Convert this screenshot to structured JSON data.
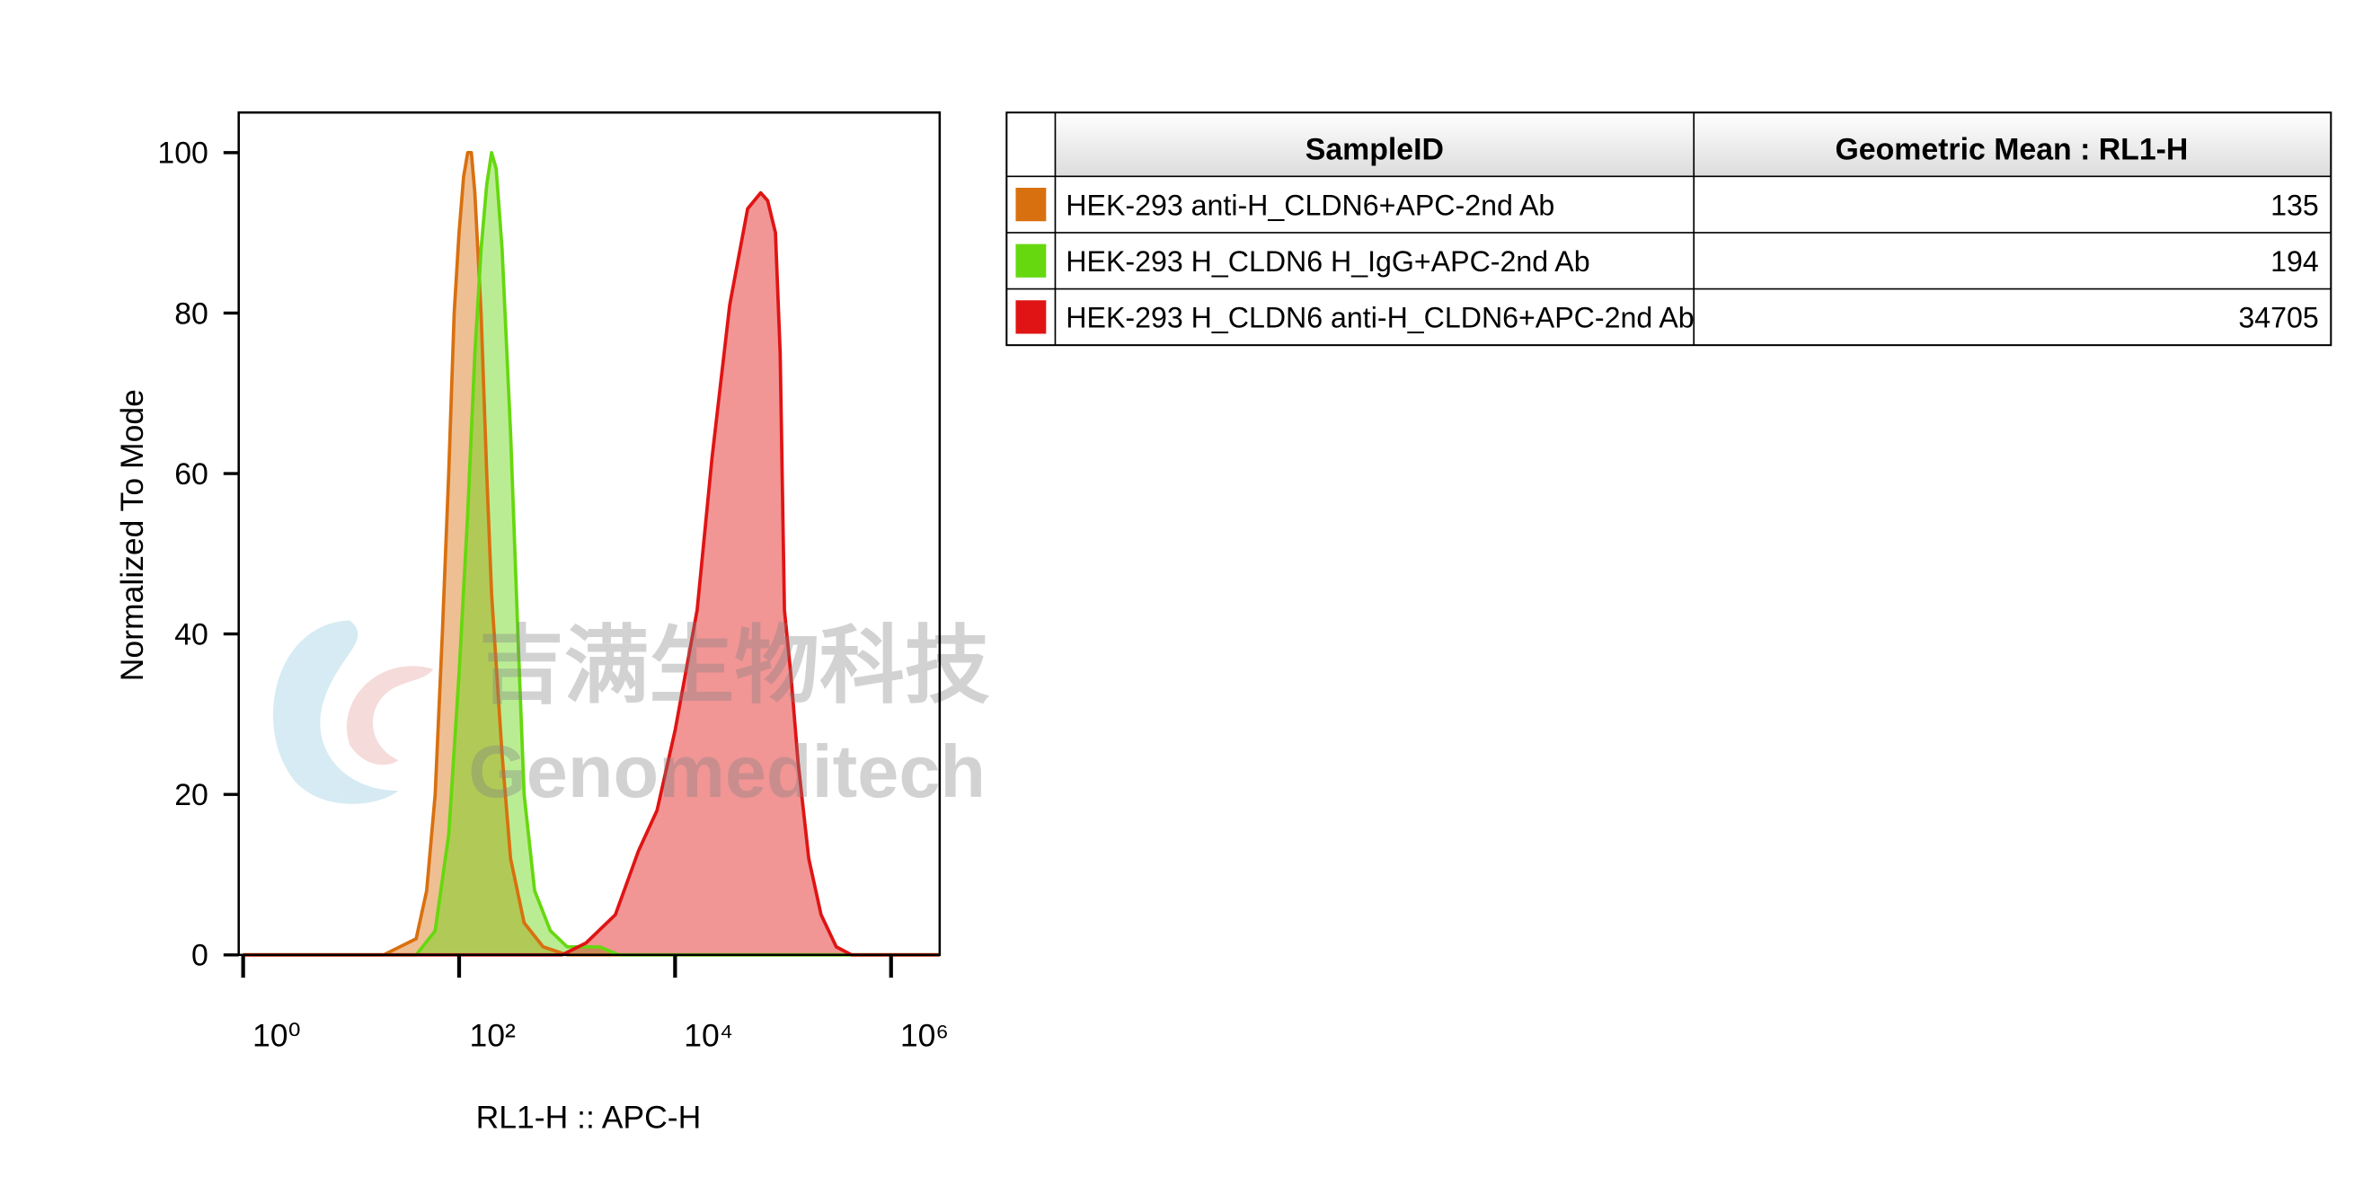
{
  "chart_data": {
    "type": "area",
    "xlabel": "RL1-H :: APC-H",
    "ylabel": "Normalized To Mode",
    "xscale": "log",
    "xlim": [
      0.91,
      2820000
    ],
    "xticks": [
      {
        "value": 1,
        "label": "10⁰"
      },
      {
        "value": 100,
        "label": "10²"
      },
      {
        "value": 10000,
        "label": "10⁴"
      },
      {
        "value": 1000000,
        "label": "10⁶"
      }
    ],
    "ylim": [
      0,
      105
    ],
    "yticks": [
      0,
      20,
      40,
      60,
      80,
      100
    ],
    "fill_opacity": 0.45,
    "series": [
      {
        "name": "HEK-293 anti-H_CLDN6+APC-2nd Ab",
        "color": "#d9700f",
        "x": [
          1,
          20,
          40,
          50,
          60,
          70,
          80,
          90,
          100,
          110,
          120,
          130,
          140,
          160,
          180,
          200,
          250,
          300,
          400,
          600,
          1000,
          2820000
        ],
        "values": [
          0,
          0,
          2,
          8,
          20,
          40,
          60,
          80,
          90,
          97,
          100,
          100,
          95,
          80,
          60,
          45,
          25,
          12,
          4,
          1,
          0,
          0
        ]
      },
      {
        "name": "HEK-293 H_CLDN6 H_IgG+APC-2nd Ab",
        "color": "#66d80f",
        "x": [
          1,
          40,
          60,
          80,
          100,
          120,
          140,
          160,
          180,
          200,
          220,
          250,
          300,
          350,
          400,
          500,
          700,
          1000,
          2000,
          3000,
          2820000
        ],
        "values": [
          0,
          0,
          3,
          15,
          35,
          55,
          75,
          88,
          96,
          100,
          98,
          88,
          65,
          40,
          20,
          8,
          3,
          1,
          1,
          0,
          0
        ]
      },
      {
        "name": "HEK-293 H_CLDN6 anti-H_CLDN6+APC-2nd Ab",
        "color": "#e01414",
        "x": [
          1,
          900,
          1500,
          2800,
          4600,
          6800,
          10000,
          16000,
          22000,
          32000,
          47000,
          62000,
          72000,
          85000,
          94000,
          103000,
          118000,
          138000,
          173000,
          225000,
          311000,
          431000,
          2820000
        ],
        "values": [
          0,
          0,
          1.5,
          5,
          13,
          18,
          28,
          43,
          62,
          81,
          93,
          95,
          94,
          90,
          75,
          43,
          35,
          24,
          12,
          5,
          1,
          0,
          0
        ]
      }
    ]
  },
  "table": {
    "headers": [
      "SampleID",
      "Geometric Mean : RL1-H"
    ],
    "rows": [
      [
        "HEK-293 anti-H_CLDN6+APC-2nd Ab",
        "135"
      ],
      [
        "HEK-293 H_CLDN6 H_IgG+APC-2nd Ab",
        "194"
      ],
      [
        "HEK-293 H_CLDN6 anti-H_CLDN6+APC-2nd Ab",
        "34705"
      ]
    ]
  },
  "watermark": {
    "text_cn": "吉满生物科技",
    "text_en": "Genomeditech"
  }
}
